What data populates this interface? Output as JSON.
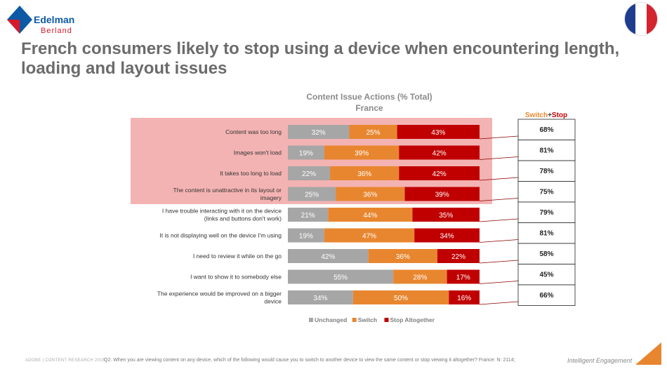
{
  "branding": {
    "company": "Edelman",
    "subbrand": "Berland",
    "footer_left": "ADOBE | CONTENT RESEARCH 2015",
    "footer_right": "Intelligent Engagement"
  },
  "header": {
    "title": "French consumers likely to stop using a device when encountering length, loading and layout issues"
  },
  "footnote": "Q2. When you are viewing content on any device, which of the following would cause you to switch to another device to view the same content or stop viewing it altogether? France: N: 2114;",
  "colors": {
    "unchanged": "#a6a6a6",
    "switch": "#e8862f",
    "stop": "#c00000",
    "highlight": "#f4b3b3",
    "flag_blue": "#1f3d8f",
    "flag_white": "#ffffff",
    "flag_red": "#d32430"
  },
  "chart_data": {
    "type": "bar",
    "orientation": "horizontal",
    "stacked": true,
    "title": "Content Issue Actions (% Total)",
    "subtitle": "France",
    "categories": [
      "Content was too long",
      "Images won't load",
      "It takes too long to load",
      "The content is unattractive in its layout or imagery",
      "I have trouble interacting with it on the device (links and buttons don't work)",
      "It is not displaying well on the device I'm using",
      "I need to review it while on the go",
      "I want to show it to somebody else",
      "The experience would be improved on a bigger device"
    ],
    "series": [
      {
        "name": "Unchanged",
        "values": [
          32,
          19,
          22,
          25,
          21,
          19,
          42,
          55,
          34
        ]
      },
      {
        "name": "Switch",
        "values": [
          25,
          39,
          36,
          36,
          44,
          47,
          36,
          28,
          50
        ]
      },
      {
        "name": "Stop Altogether",
        "values": [
          43,
          42,
          42,
          39,
          35,
          34,
          22,
          17,
          16
        ]
      }
    ],
    "side_table": {
      "header_switch": "Switch",
      "header_plus": "+",
      "header_stop": "Stop",
      "values": [
        "68%",
        "81%",
        "78%",
        "75%",
        "79%",
        "81%",
        "58%",
        "45%",
        "66%"
      ]
    },
    "highlighted_rows": [
      0,
      1,
      2,
      3
    ],
    "legend_position": "bottom",
    "xlim": [
      0,
      100
    ]
  }
}
